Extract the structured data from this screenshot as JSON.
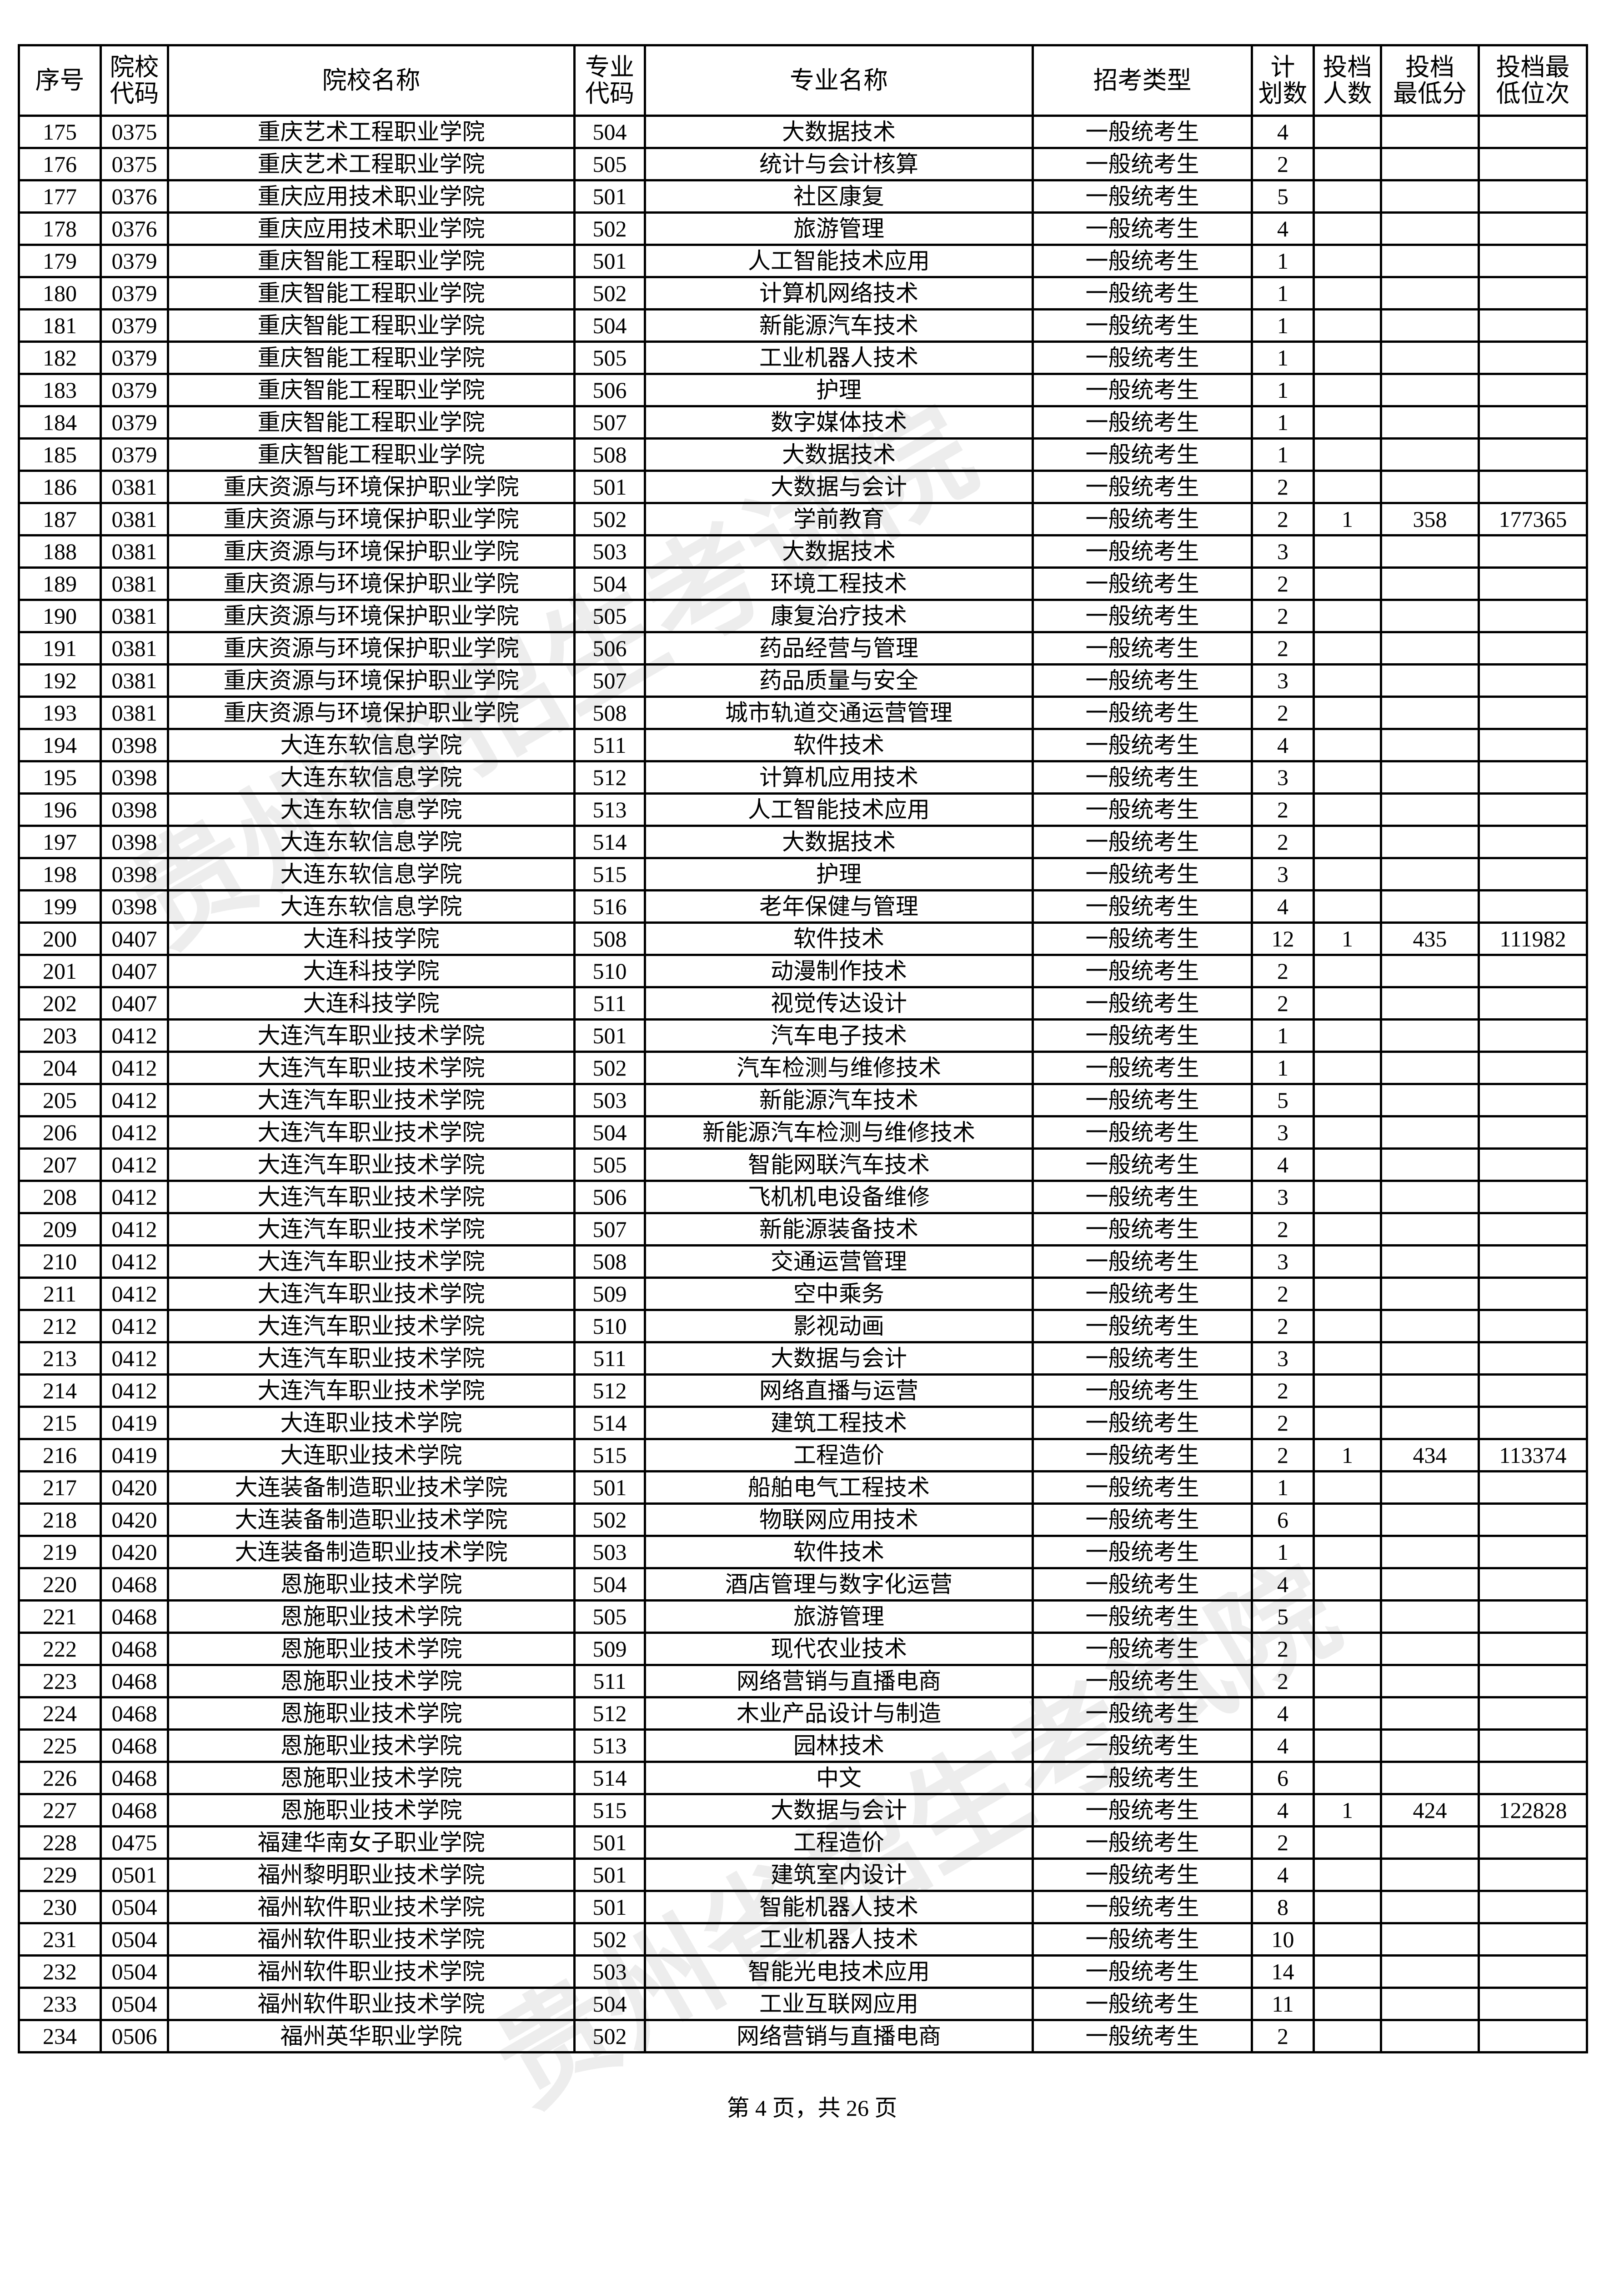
{
  "headers": [
    "序号",
    "院校代码",
    "院校名称",
    "专业代码",
    "专业名称",
    "招考类型",
    "计划数",
    "投档人数",
    "投档最低分",
    "投档最低位次"
  ],
  "rows": [
    [
      "175",
      "0375",
      "重庆艺术工程职业学院",
      "504",
      "大数据技术",
      "一般统考生",
      "4",
      "",
      "",
      ""
    ],
    [
      "176",
      "0375",
      "重庆艺术工程职业学院",
      "505",
      "统计与会计核算",
      "一般统考生",
      "2",
      "",
      "",
      ""
    ],
    [
      "177",
      "0376",
      "重庆应用技术职业学院",
      "501",
      "社区康复",
      "一般统考生",
      "5",
      "",
      "",
      ""
    ],
    [
      "178",
      "0376",
      "重庆应用技术职业学院",
      "502",
      "旅游管理",
      "一般统考生",
      "4",
      "",
      "",
      ""
    ],
    [
      "179",
      "0379",
      "重庆智能工程职业学院",
      "501",
      "人工智能技术应用",
      "一般统考生",
      "1",
      "",
      "",
      ""
    ],
    [
      "180",
      "0379",
      "重庆智能工程职业学院",
      "502",
      "计算机网络技术",
      "一般统考生",
      "1",
      "",
      "",
      ""
    ],
    [
      "181",
      "0379",
      "重庆智能工程职业学院",
      "504",
      "新能源汽车技术",
      "一般统考生",
      "1",
      "",
      "",
      ""
    ],
    [
      "182",
      "0379",
      "重庆智能工程职业学院",
      "505",
      "工业机器人技术",
      "一般统考生",
      "1",
      "",
      "",
      ""
    ],
    [
      "183",
      "0379",
      "重庆智能工程职业学院",
      "506",
      "护理",
      "一般统考生",
      "1",
      "",
      "",
      ""
    ],
    [
      "184",
      "0379",
      "重庆智能工程职业学院",
      "507",
      "数字媒体技术",
      "一般统考生",
      "1",
      "",
      "",
      ""
    ],
    [
      "185",
      "0379",
      "重庆智能工程职业学院",
      "508",
      "大数据技术",
      "一般统考生",
      "1",
      "",
      "",
      ""
    ],
    [
      "186",
      "0381",
      "重庆资源与环境保护职业学院",
      "501",
      "大数据与会计",
      "一般统考生",
      "2",
      "",
      "",
      ""
    ],
    [
      "187",
      "0381",
      "重庆资源与环境保护职业学院",
      "502",
      "学前教育",
      "一般统考生",
      "2",
      "1",
      "358",
      "177365"
    ],
    [
      "188",
      "0381",
      "重庆资源与环境保护职业学院",
      "503",
      "大数据技术",
      "一般统考生",
      "3",
      "",
      "",
      ""
    ],
    [
      "189",
      "0381",
      "重庆资源与环境保护职业学院",
      "504",
      "环境工程技术",
      "一般统考生",
      "2",
      "",
      "",
      ""
    ],
    [
      "190",
      "0381",
      "重庆资源与环境保护职业学院",
      "505",
      "康复治疗技术",
      "一般统考生",
      "2",
      "",
      "",
      ""
    ],
    [
      "191",
      "0381",
      "重庆资源与环境保护职业学院",
      "506",
      "药品经营与管理",
      "一般统考生",
      "2",
      "",
      "",
      ""
    ],
    [
      "192",
      "0381",
      "重庆资源与环境保护职业学院",
      "507",
      "药品质量与安全",
      "一般统考生",
      "3",
      "",
      "",
      ""
    ],
    [
      "193",
      "0381",
      "重庆资源与环境保护职业学院",
      "508",
      "城市轨道交通运营管理",
      "一般统考生",
      "2",
      "",
      "",
      ""
    ],
    [
      "194",
      "0398",
      "大连东软信息学院",
      "511",
      "软件技术",
      "一般统考生",
      "4",
      "",
      "",
      ""
    ],
    [
      "195",
      "0398",
      "大连东软信息学院",
      "512",
      "计算机应用技术",
      "一般统考生",
      "3",
      "",
      "",
      ""
    ],
    [
      "196",
      "0398",
      "大连东软信息学院",
      "513",
      "人工智能技术应用",
      "一般统考生",
      "2",
      "",
      "",
      ""
    ],
    [
      "197",
      "0398",
      "大连东软信息学院",
      "514",
      "大数据技术",
      "一般统考生",
      "2",
      "",
      "",
      ""
    ],
    [
      "198",
      "0398",
      "大连东软信息学院",
      "515",
      "护理",
      "一般统考生",
      "3",
      "",
      "",
      ""
    ],
    [
      "199",
      "0398",
      "大连东软信息学院",
      "516",
      "老年保健与管理",
      "一般统考生",
      "4",
      "",
      "",
      ""
    ],
    [
      "200",
      "0407",
      "大连科技学院",
      "508",
      "软件技术",
      "一般统考生",
      "12",
      "1",
      "435",
      "111982"
    ],
    [
      "201",
      "0407",
      "大连科技学院",
      "510",
      "动漫制作技术",
      "一般统考生",
      "2",
      "",
      "",
      ""
    ],
    [
      "202",
      "0407",
      "大连科技学院",
      "511",
      "视觉传达设计",
      "一般统考生",
      "2",
      "",
      "",
      ""
    ],
    [
      "203",
      "0412",
      "大连汽车职业技术学院",
      "501",
      "汽车电子技术",
      "一般统考生",
      "1",
      "",
      "",
      ""
    ],
    [
      "204",
      "0412",
      "大连汽车职业技术学院",
      "502",
      "汽车检测与维修技术",
      "一般统考生",
      "1",
      "",
      "",
      ""
    ],
    [
      "205",
      "0412",
      "大连汽车职业技术学院",
      "503",
      "新能源汽车技术",
      "一般统考生",
      "5",
      "",
      "",
      ""
    ],
    [
      "206",
      "0412",
      "大连汽车职业技术学院",
      "504",
      "新能源汽车检测与维修技术",
      "一般统考生",
      "3",
      "",
      "",
      ""
    ],
    [
      "207",
      "0412",
      "大连汽车职业技术学院",
      "505",
      "智能网联汽车技术",
      "一般统考生",
      "4",
      "",
      "",
      ""
    ],
    [
      "208",
      "0412",
      "大连汽车职业技术学院",
      "506",
      "飞机机电设备维修",
      "一般统考生",
      "3",
      "",
      "",
      ""
    ],
    [
      "209",
      "0412",
      "大连汽车职业技术学院",
      "507",
      "新能源装备技术",
      "一般统考生",
      "2",
      "",
      "",
      ""
    ],
    [
      "210",
      "0412",
      "大连汽车职业技术学院",
      "508",
      "交通运营管理",
      "一般统考生",
      "3",
      "",
      "",
      ""
    ],
    [
      "211",
      "0412",
      "大连汽车职业技术学院",
      "509",
      "空中乘务",
      "一般统考生",
      "2",
      "",
      "",
      ""
    ],
    [
      "212",
      "0412",
      "大连汽车职业技术学院",
      "510",
      "影视动画",
      "一般统考生",
      "2",
      "",
      "",
      ""
    ],
    [
      "213",
      "0412",
      "大连汽车职业技术学院",
      "511",
      "大数据与会计",
      "一般统考生",
      "3",
      "",
      "",
      ""
    ],
    [
      "214",
      "0412",
      "大连汽车职业技术学院",
      "512",
      "网络直播与运营",
      "一般统考生",
      "2",
      "",
      "",
      ""
    ],
    [
      "215",
      "0419",
      "大连职业技术学院",
      "514",
      "建筑工程技术",
      "一般统考生",
      "2",
      "",
      "",
      ""
    ],
    [
      "216",
      "0419",
      "大连职业技术学院",
      "515",
      "工程造价",
      "一般统考生",
      "2",
      "1",
      "434",
      "113374"
    ],
    [
      "217",
      "0420",
      "大连装备制造职业技术学院",
      "501",
      "船舶电气工程技术",
      "一般统考生",
      "1",
      "",
      "",
      ""
    ],
    [
      "218",
      "0420",
      "大连装备制造职业技术学院",
      "502",
      "物联网应用技术",
      "一般统考生",
      "6",
      "",
      "",
      ""
    ],
    [
      "219",
      "0420",
      "大连装备制造职业技术学院",
      "503",
      "软件技术",
      "一般统考生",
      "1",
      "",
      "",
      ""
    ],
    [
      "220",
      "0468",
      "恩施职业技术学院",
      "504",
      "酒店管理与数字化运营",
      "一般统考生",
      "4",
      "",
      "",
      ""
    ],
    [
      "221",
      "0468",
      "恩施职业技术学院",
      "505",
      "旅游管理",
      "一般统考生",
      "5",
      "",
      "",
      ""
    ],
    [
      "222",
      "0468",
      "恩施职业技术学院",
      "509",
      "现代农业技术",
      "一般统考生",
      "2",
      "",
      "",
      ""
    ],
    [
      "223",
      "0468",
      "恩施职业技术学院",
      "511",
      "网络营销与直播电商",
      "一般统考生",
      "2",
      "",
      "",
      ""
    ],
    [
      "224",
      "0468",
      "恩施职业技术学院",
      "512",
      "木业产品设计与制造",
      "一般统考生",
      "4",
      "",
      "",
      ""
    ],
    [
      "225",
      "0468",
      "恩施职业技术学院",
      "513",
      "园林技术",
      "一般统考生",
      "4",
      "",
      "",
      ""
    ],
    [
      "226",
      "0468",
      "恩施职业技术学院",
      "514",
      "中文",
      "一般统考生",
      "6",
      "",
      "",
      ""
    ],
    [
      "227",
      "0468",
      "恩施职业技术学院",
      "515",
      "大数据与会计",
      "一般统考生",
      "4",
      "1",
      "424",
      "122828"
    ],
    [
      "228",
      "0475",
      "福建华南女子职业学院",
      "501",
      "工程造价",
      "一般统考生",
      "2",
      "",
      "",
      ""
    ],
    [
      "229",
      "0501",
      "福州黎明职业技术学院",
      "501",
      "建筑室内设计",
      "一般统考生",
      "4",
      "",
      "",
      ""
    ],
    [
      "230",
      "0504",
      "福州软件职业技术学院",
      "501",
      "智能机器人技术",
      "一般统考生",
      "8",
      "",
      "",
      ""
    ],
    [
      "231",
      "0504",
      "福州软件职业技术学院",
      "502",
      "工业机器人技术",
      "一般统考生",
      "10",
      "",
      "",
      ""
    ],
    [
      "232",
      "0504",
      "福州软件职业技术学院",
      "503",
      "智能光电技术应用",
      "一般统考生",
      "14",
      "",
      "",
      ""
    ],
    [
      "233",
      "0504",
      "福州软件职业技术学院",
      "504",
      "工业互联网应用",
      "一般统考生",
      "11",
      "",
      "",
      ""
    ],
    [
      "234",
      "0506",
      "福州英华职业学院",
      "502",
      "网络营销与直播电商",
      "一般统考生",
      "2",
      "",
      "",
      ""
    ]
  ],
  "watermark": "贵州省招生考试院",
  "footer": "第 4 页，共 26 页"
}
